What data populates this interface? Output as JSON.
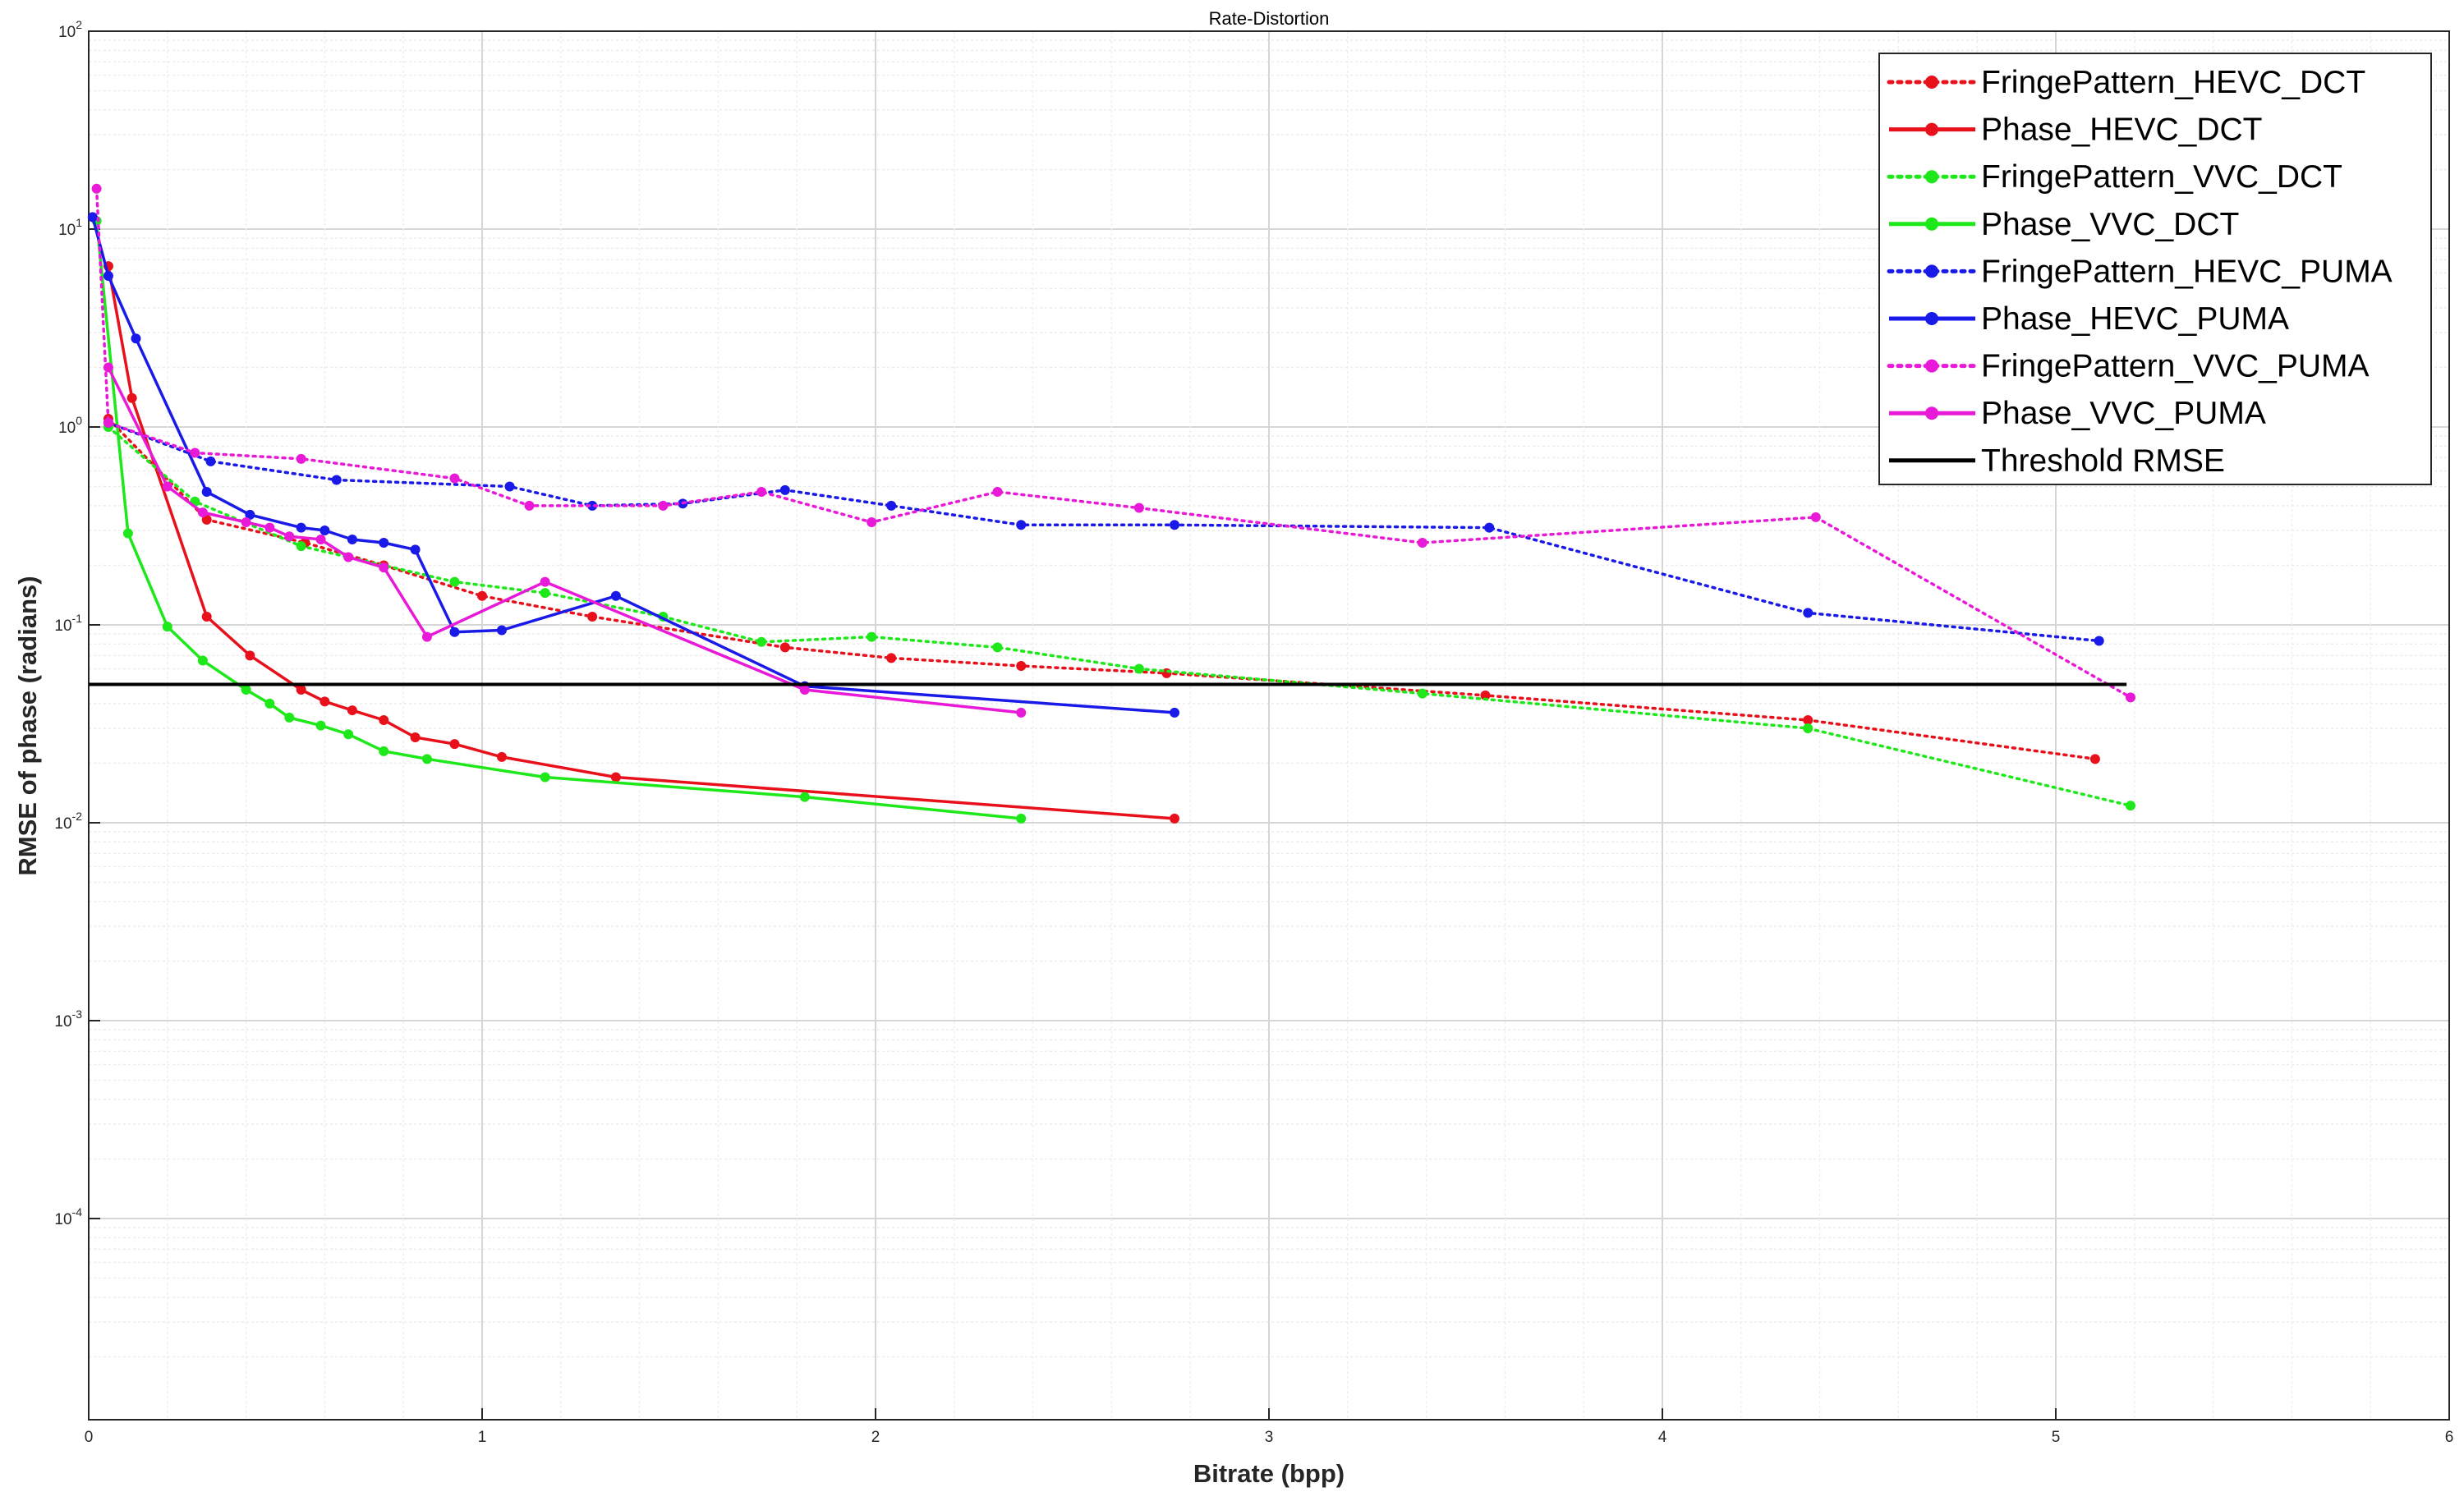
{
  "chart_data": {
    "type": "line",
    "title": "Rate-Distortion",
    "xlabel": "Bitrate (bpp)",
    "ylabel": "RMSE of phase (radians)",
    "xlim": [
      0,
      6
    ],
    "ylim": [
      1e-05,
      100
    ],
    "yscale": "log",
    "grid": true,
    "legend_position": "top-right",
    "x_ticks": [
      "0",
      "1",
      "2",
      "3",
      "4",
      "5",
      "6"
    ],
    "y_ticks": [
      {
        "base": "10",
        "exp": "2"
      },
      {
        "base": "10",
        "exp": "1"
      },
      {
        "base": "10",
        "exp": "0"
      },
      {
        "base": "10",
        "exp": "-1"
      },
      {
        "base": "10",
        "exp": "-2"
      },
      {
        "base": "10",
        "exp": "-3"
      },
      {
        "base": "10",
        "exp": "-4"
      }
    ],
    "series": [
      {
        "name": "FringePattern_HEVC_DCT",
        "color": "#e8101a",
        "style": "dotted",
        "x": [
          0.05,
          0.3,
          0.55,
          0.75,
          1.0,
          1.28,
          1.77,
          2.04,
          2.37,
          2.74,
          3.55,
          4.37,
          5.1
        ],
        "y": [
          1.1,
          0.34,
          0.26,
          0.2,
          0.14,
          0.11,
          0.077,
          0.068,
          0.062,
          0.057,
          0.044,
          0.033,
          0.021
        ]
      },
      {
        "name": "Phase_HEVC_DCT",
        "color": "#e8101a",
        "style": "solid",
        "x": [
          0.05,
          0.11,
          0.3,
          0.41,
          0.54,
          0.6,
          0.67,
          0.75,
          0.83,
          0.93,
          1.05,
          1.34,
          2.76
        ],
        "y": [
          6.5,
          1.4,
          0.11,
          0.07,
          0.047,
          0.041,
          0.037,
          0.033,
          0.027,
          0.025,
          0.0215,
          0.017,
          0.0105
        ]
      },
      {
        "name": "FringePattern_VVC_DCT",
        "color": "#1ee81a",
        "style": "dotted",
        "x": [
          0.05,
          0.27,
          0.54,
          0.93,
          1.16,
          1.46,
          1.71,
          1.99,
          2.31,
          2.67,
          3.39,
          4.37,
          5.19
        ],
        "y": [
          1.0,
          0.42,
          0.25,
          0.165,
          0.145,
          0.11,
          0.082,
          0.087,
          0.077,
          0.06,
          0.045,
          0.03,
          0.0122
        ]
      },
      {
        "name": "Phase_VVC_DCT",
        "color": "#1ee81a",
        "style": "solid",
        "x": [
          0.02,
          0.1,
          0.2,
          0.29,
          0.4,
          0.46,
          0.51,
          0.59,
          0.66,
          0.75,
          0.86,
          1.16,
          1.82,
          2.37
        ],
        "y": [
          11.0,
          0.29,
          0.098,
          0.066,
          0.047,
          0.04,
          0.034,
          0.031,
          0.028,
          0.023,
          0.021,
          0.017,
          0.0135,
          0.0105
        ]
      },
      {
        "name": "FringePattern_HEVC_PUMA",
        "color": "#1a1ae8",
        "style": "dotted",
        "x": [
          0.05,
          0.31,
          0.63,
          1.07,
          1.28,
          1.51,
          1.77,
          2.04,
          2.37,
          2.76,
          3.56,
          4.37,
          5.11
        ],
        "y": [
          1.05,
          0.67,
          0.54,
          0.5,
          0.4,
          0.41,
          0.48,
          0.4,
          0.32,
          0.32,
          0.31,
          0.115,
          0.083
        ]
      },
      {
        "name": "Phase_HEVC_PUMA",
        "color": "#1a1ae8",
        "style": "solid",
        "x": [
          0.01,
          0.05,
          0.12,
          0.3,
          0.41,
          0.54,
          0.6,
          0.67,
          0.75,
          0.83,
          0.93,
          1.05,
          1.34,
          1.82,
          2.76
        ],
        "y": [
          11.5,
          5.8,
          2.8,
          0.47,
          0.36,
          0.31,
          0.3,
          0.27,
          0.26,
          0.24,
          0.092,
          0.094,
          0.14,
          0.049,
          0.036
        ]
      },
      {
        "name": "FringePattern_VVC_PUMA",
        "color": "#e81ad8",
        "style": "dotted",
        "x": [
          0.02,
          0.05,
          0.27,
          0.54,
          0.93,
          1.12,
          1.46,
          1.71,
          1.99,
          2.31,
          2.67,
          3.39,
          4.39,
          5.19
        ],
        "y": [
          16.0,
          1.05,
          0.74,
          0.69,
          0.55,
          0.4,
          0.4,
          0.47,
          0.33,
          0.47,
          0.39,
          0.26,
          0.35,
          0.043
        ]
      },
      {
        "name": "Phase_VVC_PUMA",
        "color": "#e81ad8",
        "style": "solid",
        "x": [
          0.05,
          0.2,
          0.29,
          0.4,
          0.46,
          0.51,
          0.59,
          0.66,
          0.75,
          0.86,
          1.16,
          1.82,
          2.37
        ],
        "y": [
          2.0,
          0.5,
          0.37,
          0.33,
          0.31,
          0.28,
          0.27,
          0.22,
          0.195,
          0.087,
          0.165,
          0.047,
          0.036
        ]
      },
      {
        "name": "Threshold RMSE",
        "color": "#000000",
        "style": "solid",
        "markers": false,
        "x": [
          0,
          5.18
        ],
        "y": [
          0.05,
          0.05
        ]
      }
    ]
  }
}
